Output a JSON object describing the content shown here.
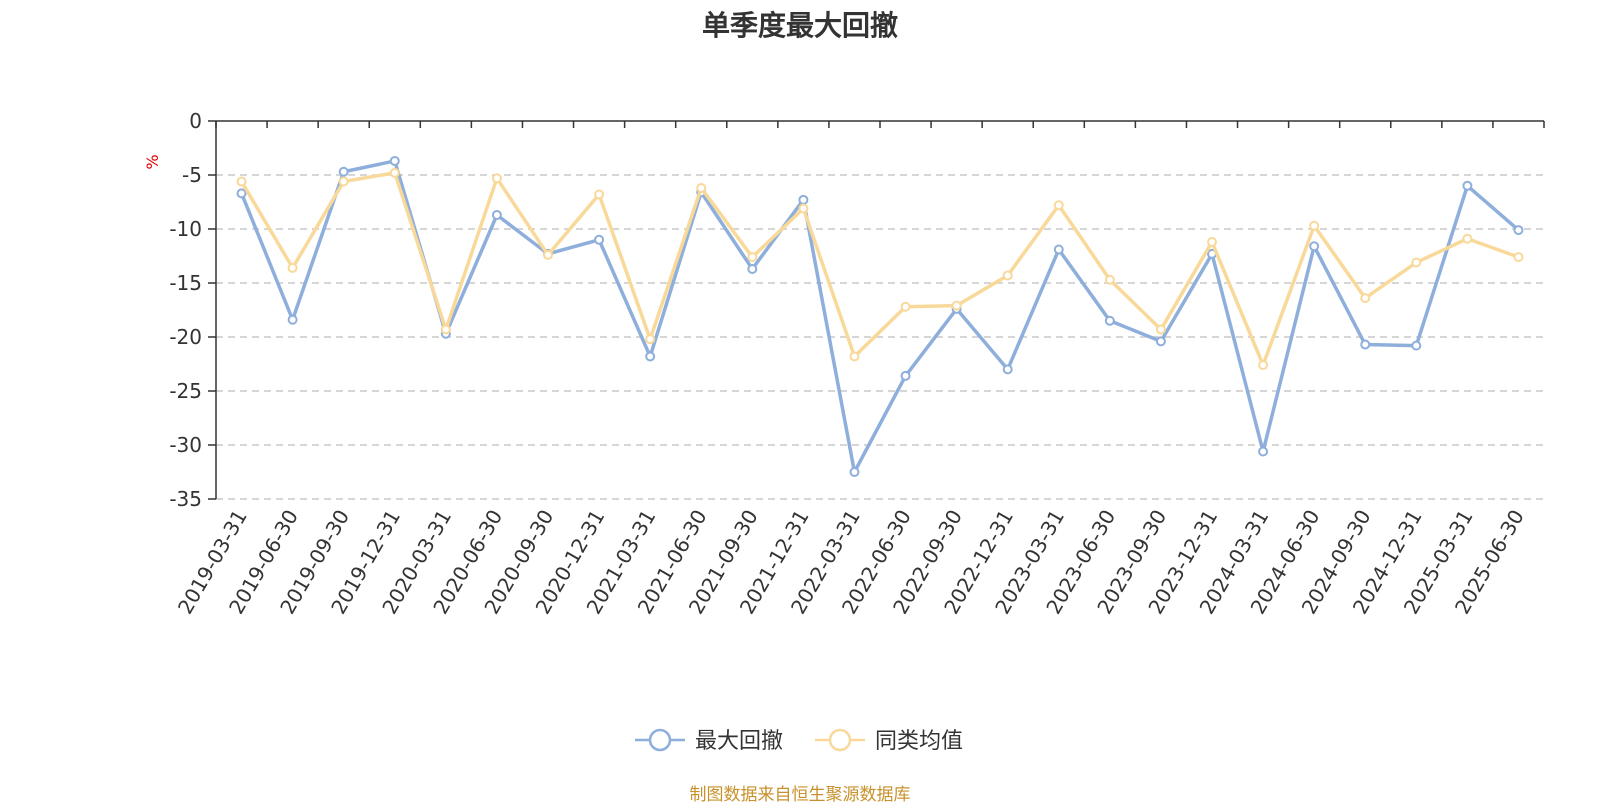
{
  "chart_data": {
    "type": "line",
    "title": "单季度最大回撤",
    "ylabel": "%",
    "xlabel": "",
    "ylim": [
      -35,
      0
    ],
    "yticks": [
      0,
      -5,
      -10,
      -15,
      -20,
      -25,
      -30,
      -35
    ],
    "grid": true,
    "legend_position": "bottom-center",
    "categories": [
      "2019-03-31",
      "2019-06-30",
      "2019-09-30",
      "2019-12-31",
      "2020-03-31",
      "2020-06-30",
      "2020-09-30",
      "2020-12-31",
      "2021-03-31",
      "2021-06-30",
      "2021-09-30",
      "2021-12-31",
      "2022-03-31",
      "2022-06-30",
      "2022-09-30",
      "2022-12-31",
      "2023-03-31",
      "2023-06-30",
      "2023-09-30",
      "2023-12-31",
      "2024-03-31",
      "2024-06-30",
      "2024-09-30",
      "2024-12-31",
      "2025-03-31",
      "2025-06-30"
    ],
    "series": [
      {
        "name": "最大回撤",
        "color": "#8eaedb",
        "values": [
          -6.7,
          -18.4,
          -4.7,
          -3.7,
          -19.7,
          -8.7,
          -12.3,
          -11.0,
          -21.8,
          -6.6,
          -13.7,
          -7.3,
          -32.5,
          -23.6,
          -17.4,
          -23.0,
          -11.9,
          -18.5,
          -20.4,
          -12.3,
          -30.6,
          -11.6,
          -20.7,
          -20.8,
          -6.0,
          -10.1
        ]
      },
      {
        "name": "同类均值",
        "color": "#f8d99a",
        "values": [
          -5.6,
          -13.6,
          -5.6,
          -4.8,
          -19.3,
          -5.3,
          -12.4,
          -6.8,
          -20.2,
          -6.2,
          -12.6,
          -8.1,
          -21.8,
          -17.2,
          -17.1,
          -14.3,
          -7.8,
          -14.7,
          -19.3,
          -11.2,
          -22.6,
          -9.7,
          -16.4,
          -13.1,
          -10.9,
          -12.6
        ]
      }
    ]
  },
  "footer": {
    "source": "制图数据来自恒生聚源数据库"
  }
}
